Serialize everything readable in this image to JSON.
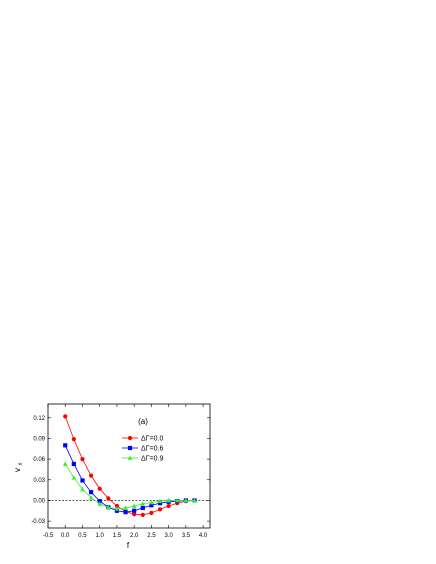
{
  "chart_data": {
    "type": "line",
    "title": "",
    "annotation": "(a)",
    "xlabel": "f",
    "ylabel_main": "v",
    "ylabel_sub": "x",
    "xlim": [
      -0.5,
      4.2
    ],
    "ylim": [
      -0.04,
      0.14
    ],
    "x_ticks": [
      "-0.5",
      "0.0",
      "0.5",
      "1.0",
      "1.5",
      "2.0",
      "2.5",
      "3.0",
      "3.5",
      "4.0"
    ],
    "x_tick_values": [
      -0.5,
      0.0,
      0.5,
      1.0,
      1.5,
      2.0,
      2.5,
      3.0,
      3.5,
      4.0
    ],
    "y_ticks": [
      "0.12",
      "0.09",
      "0.06",
      "0.03",
      "0.00",
      "-0.03"
    ],
    "y_tick_values": [
      0.12,
      0.09,
      0.06,
      0.03,
      0.0,
      -0.03
    ],
    "reference_line": {
      "y": 0.0,
      "style": "dashed"
    },
    "legend_position": "upper-right-center",
    "series": [
      {
        "name": "ΔΓ=0.0",
        "color": "#ff0000",
        "marker": "circle",
        "x": [
          0.0,
          0.25,
          0.5,
          0.75,
          1.0,
          1.25,
          1.5,
          1.75,
          2.0,
          2.25,
          2.5,
          2.75,
          3.0,
          3.25,
          3.5,
          3.75
        ],
        "y": [
          0.122,
          0.089,
          0.06,
          0.036,
          0.017,
          0.003,
          -0.008,
          -0.016,
          -0.02,
          -0.021,
          -0.018,
          -0.013,
          -0.008,
          -0.004,
          -0.001,
          0.0
        ]
      },
      {
        "name": "ΔΓ=0.6",
        "color": "#0000ff",
        "marker": "square",
        "x": [
          0.0,
          0.25,
          0.5,
          0.75,
          1.0,
          1.25,
          1.5,
          1.75,
          2.0,
          2.25,
          2.5,
          2.75,
          3.0,
          3.25,
          3.5,
          3.75
        ],
        "y": [
          0.08,
          0.053,
          0.029,
          0.012,
          -0.001,
          -0.01,
          -0.015,
          -0.017,
          -0.015,
          -0.011,
          -0.007,
          -0.004,
          -0.002,
          -0.001,
          0.0,
          0.0
        ]
      },
      {
        "name": "ΔΓ=0.9",
        "color": "#33ee33",
        "marker": "triangle",
        "x": [
          0.0,
          0.25,
          0.5,
          0.75,
          1.0,
          1.25,
          1.5,
          1.75,
          2.0,
          2.25,
          2.5,
          2.75,
          3.0,
          3.25,
          3.5,
          3.75
        ],
        "y": [
          0.053,
          0.033,
          0.016,
          0.004,
          -0.005,
          -0.01,
          -0.012,
          -0.011,
          -0.008,
          -0.005,
          -0.003,
          -0.001,
          0.0,
          0.0,
          0.0,
          0.0
        ]
      }
    ]
  }
}
